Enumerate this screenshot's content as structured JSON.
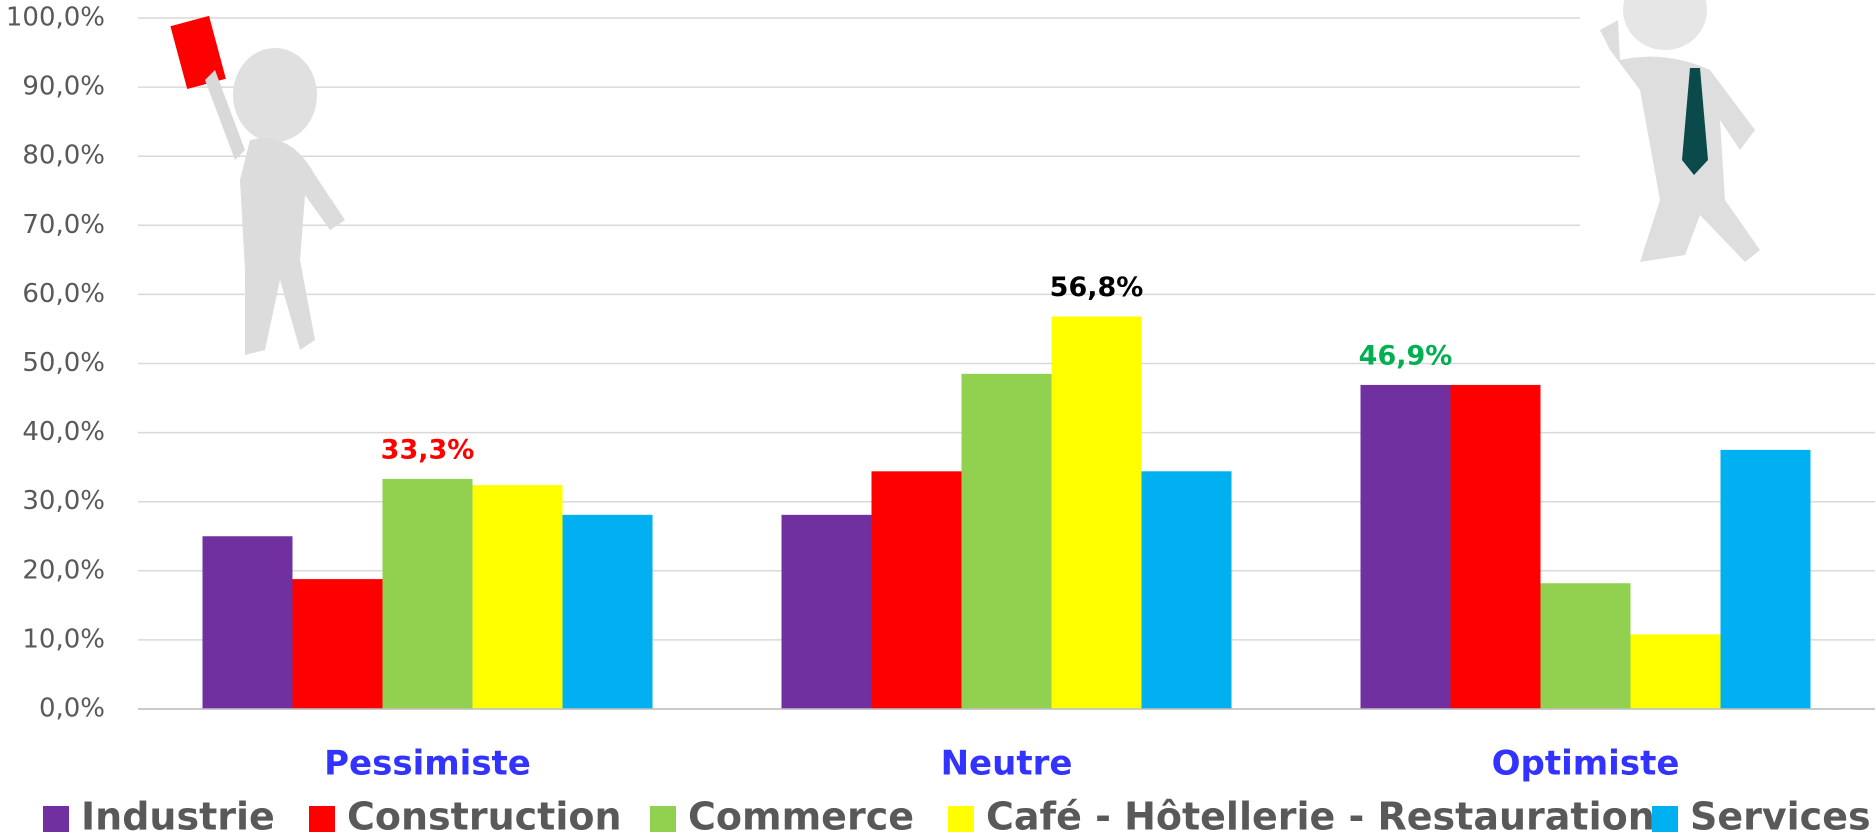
{
  "chart_data": {
    "type": "bar",
    "categories": [
      "Pessimiste",
      "Neutre",
      "Optimiste"
    ],
    "series": [
      {
        "name": "Industrie",
        "color": "#7030a0",
        "values": [
          25.0,
          28.1,
          46.9
        ],
        "value_labels": [
          null,
          null,
          "46,9%"
        ],
        "value_label_colors": [
          null,
          null,
          "#00b050"
        ]
      },
      {
        "name": "Construction",
        "color": "#ff0000",
        "values": [
          18.8,
          34.4,
          46.9
        ],
        "value_labels": [
          null,
          null,
          null
        ],
        "value_label_colors": [
          null,
          null,
          null
        ]
      },
      {
        "name": "Commerce",
        "color": "#92d050",
        "values": [
          33.3,
          48.5,
          18.2
        ],
        "value_labels": [
          "33,3%",
          null,
          null
        ],
        "value_label_colors": [
          "#ff0000",
          null,
          null
        ]
      },
      {
        "name": "Café - Hôtellerie - Restauration",
        "color": "#ffff00",
        "values": [
          32.4,
          56.8,
          10.8
        ],
        "value_labels": [
          null,
          "56,8%",
          null
        ],
        "value_label_colors": [
          null,
          "#000000",
          null
        ]
      },
      {
        "name": "Services",
        "color": "#00b0f0",
        "values": [
          28.1,
          34.4,
          37.5
        ],
        "value_labels": [
          null,
          null,
          null
        ],
        "value_label_colors": [
          null,
          null,
          null
        ]
      }
    ],
    "ylim": [
      0,
      100
    ],
    "yticks": [
      {
        "value": 0,
        "label": "0,0%"
      },
      {
        "value": 10,
        "label": "10,0%"
      },
      {
        "value": 20,
        "label": "20,0%"
      },
      {
        "value": 30,
        "label": "30,0%"
      },
      {
        "value": 40,
        "label": "40,0%"
      },
      {
        "value": 50,
        "label": "50,0%"
      },
      {
        "value": 60,
        "label": "60,0%"
      },
      {
        "value": 70,
        "label": "70,0%"
      },
      {
        "value": 80,
        "label": "80,0%"
      },
      {
        "value": 90,
        "label": "90,0%"
      },
      {
        "value": 100,
        "label": "100,0%"
      }
    ],
    "grid": true,
    "legend": "bottom"
  }
}
